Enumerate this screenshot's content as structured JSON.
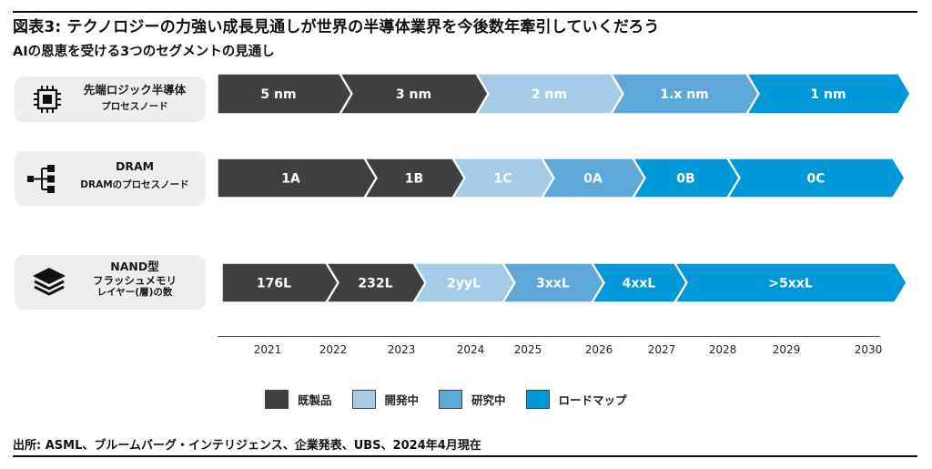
{
  "header": {
    "title": "図表3: テクノロジーの力強い成長見通しが世界の半導体業界を今後数年牽引していくだろう",
    "subtitle": "AIの恩恵を受ける3つのセグメントの見通し"
  },
  "colors": {
    "existing": "#404040",
    "development": "#a6cbe6",
    "research": "#5ea7d9",
    "roadmap": "#0098d8"
  },
  "rows": [
    {
      "label_line1": "先端ロジック半導体",
      "label_line2": "プロセスノード",
      "icon": "chip-icon",
      "segments": [
        {
          "label": "5 nm",
          "status": "existing"
        },
        {
          "label": "3 nm",
          "status": "existing"
        },
        {
          "label": "2 nm",
          "status": "development"
        },
        {
          "label": "1.x nm",
          "status": "research"
        },
        {
          "label": "1 nm",
          "status": "roadmap"
        }
      ]
    },
    {
      "label_line1": "DRAM",
      "label_line2": "DRAMのプロセスノード",
      "icon": "hierarchy-icon",
      "segments": [
        {
          "label": "1A",
          "status": "existing"
        },
        {
          "label": "1B",
          "status": "existing"
        },
        {
          "label": "1C",
          "status": "development"
        },
        {
          "label": "0A",
          "status": "research"
        },
        {
          "label": "0B",
          "status": "roadmap"
        },
        {
          "label": "0C",
          "status": "roadmap"
        }
      ]
    },
    {
      "label_line1": "NAND型",
      "label_line2": "フラッシュメモリ",
      "label_line3": "レイヤー(層)の数",
      "icon": "layers-icon",
      "segments": [
        {
          "label": "176L",
          "status": "existing"
        },
        {
          "label": "232L",
          "status": "existing"
        },
        {
          "label": "2yyL",
          "status": "development"
        },
        {
          "label": "3xxL",
          "status": "research"
        },
        {
          "label": "4xxL",
          "status": "roadmap"
        },
        {
          "label": ">5xxL",
          "status": "roadmap"
        }
      ]
    }
  ],
  "years": [
    "2021",
    "2022",
    "2023",
    "2024",
    "2025",
    "2026",
    "2027",
    "2028",
    "2029",
    "2030"
  ],
  "legend": [
    {
      "label": "既製品",
      "status": "existing"
    },
    {
      "label": "開発中",
      "status": "development"
    },
    {
      "label": "研究中",
      "status": "research"
    },
    {
      "label": "ロードマップ",
      "status": "roadmap"
    }
  ],
  "source": "出所: ASML、ブルームバーグ・インテリジェンス、企業発表、UBS、2024年4月現在"
}
